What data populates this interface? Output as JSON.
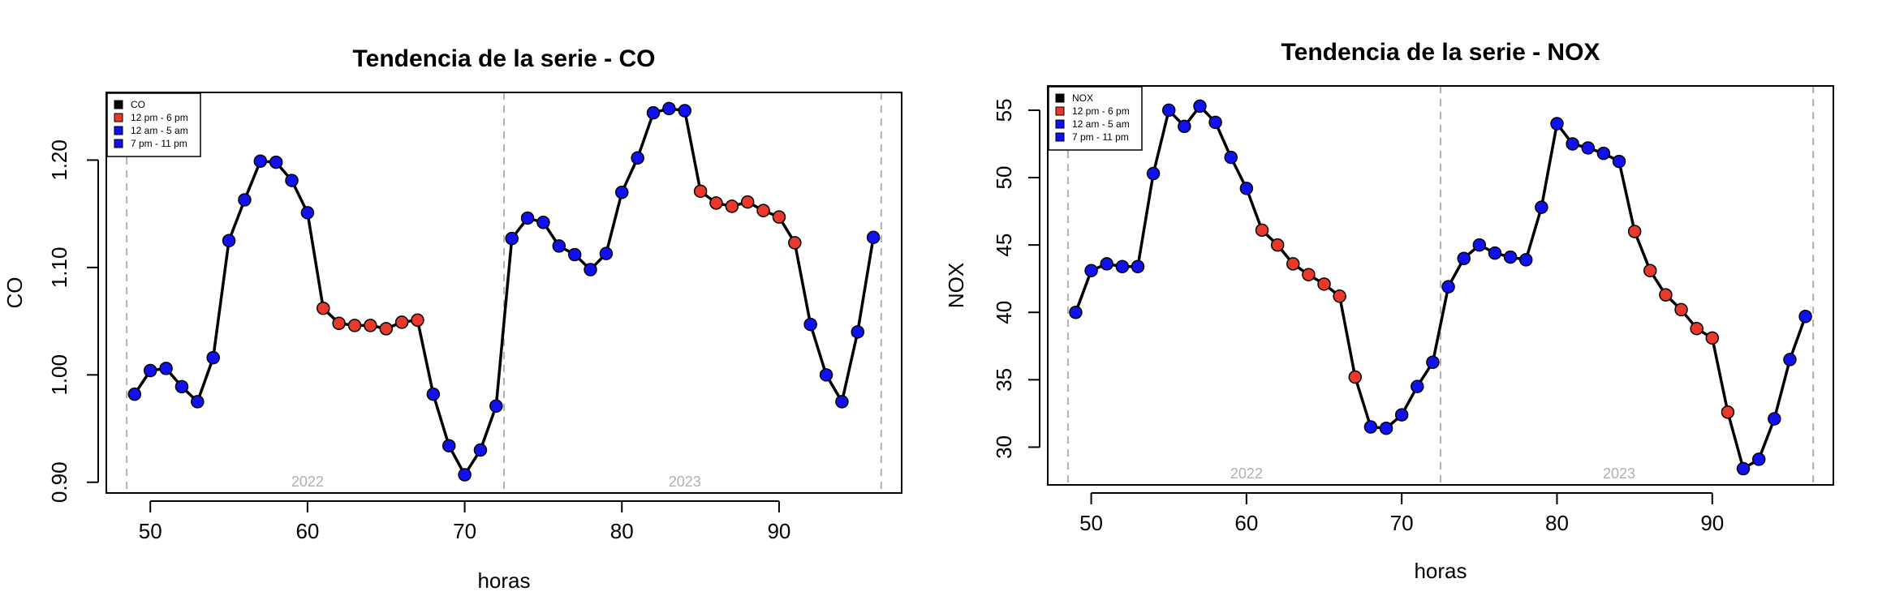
{
  "colors": {
    "line": "#000000",
    "red": "#e8392a",
    "blue": "#1010f0",
    "grid": "#b0b0b0",
    "year_text": "#b0b0b0"
  },
  "chart_data": [
    {
      "type": "line",
      "title": "Tendencia de la serie - CO",
      "xlabel": "horas",
      "ylabel": "CO",
      "xlim": [
        47.2,
        97.8
      ],
      "ylim": [
        0.89,
        1.263
      ],
      "xticks": [
        50,
        60,
        70,
        80,
        90
      ],
      "yticks": [
        0.9,
        1.0,
        1.1,
        1.2
      ],
      "ytick_labels": [
        "0.90",
        "1.00",
        "1.10",
        "1.20"
      ],
      "vlines": [
        48.5,
        72.5,
        96.5
      ],
      "year_labels": [
        {
          "x": 60,
          "text": "2022"
        },
        {
          "x": 84,
          "text": "2023"
        }
      ],
      "legend": {
        "position": "top-left",
        "entries": [
          {
            "label": "CO",
            "color": "#000000"
          },
          {
            "label": "12 pm - 6 pm",
            "color": "#e8392a"
          },
          {
            "label": "12 am - 5 am",
            "color": "#1010f0"
          },
          {
            "label": "7 pm - 11 pm",
            "color": "#1010f0"
          }
        ]
      },
      "series": {
        "x": [
          49,
          50,
          51,
          52,
          53,
          54,
          55,
          56,
          57,
          58,
          59,
          60,
          61,
          62,
          63,
          64,
          65,
          66,
          67,
          68,
          69,
          70,
          71,
          72,
          73,
          74,
          75,
          76,
          77,
          78,
          79,
          80,
          81,
          82,
          83,
          84,
          85,
          86,
          87,
          88,
          89,
          90,
          91,
          92,
          93,
          94,
          95,
          96
        ],
        "values": [
          0.982,
          1.004,
          1.006,
          0.989,
          0.975,
          1.016,
          1.125,
          1.163,
          1.199,
          1.198,
          1.181,
          1.151,
          1.062,
          1.048,
          1.046,
          1.046,
          1.043,
          1.049,
          1.051,
          0.982,
          0.934,
          0.907,
          0.93,
          0.971,
          1.127,
          1.146,
          1.142,
          1.12,
          1.112,
          1.098,
          1.113,
          1.17,
          1.202,
          1.244,
          1.248,
          1.246,
          1.171,
          1.16,
          1.157,
          1.161,
          1.153,
          1.147,
          1.123,
          1.047,
          1.0,
          0.975,
          1.04,
          1.128
        ],
        "groups": [
          "b",
          "b",
          "b",
          "b",
          "b",
          "b",
          "b",
          "b",
          "b",
          "b",
          "b",
          "b",
          "r",
          "r",
          "r",
          "r",
          "r",
          "r",
          "r",
          "b",
          "b",
          "b",
          "b",
          "b",
          "b",
          "b",
          "b",
          "b",
          "b",
          "b",
          "b",
          "b",
          "b",
          "b",
          "b",
          "b",
          "r",
          "r",
          "r",
          "r",
          "r",
          "r",
          "r",
          "b",
          "b",
          "b",
          "b",
          "b"
        ]
      }
    },
    {
      "type": "line",
      "title": "Tendencia de la serie - NOX",
      "xlabel": "horas",
      "ylabel": "NOX",
      "xlim": [
        47.2,
        97.8
      ],
      "ylim": [
        27.2,
        56.8
      ],
      "xticks": [
        50,
        60,
        70,
        80,
        90
      ],
      "yticks": [
        30,
        35,
        40,
        45,
        50,
        55
      ],
      "ytick_labels": [
        "30",
        "35",
        "40",
        "45",
        "50",
        "55"
      ],
      "vlines": [
        48.5,
        72.5,
        96.5
      ],
      "year_labels": [
        {
          "x": 60,
          "text": "2022"
        },
        {
          "x": 84,
          "text": "2023"
        }
      ],
      "legend": {
        "position": "top-left",
        "entries": [
          {
            "label": "NOX",
            "color": "#000000"
          },
          {
            "label": "12 pm - 6 pm",
            "color": "#e8392a"
          },
          {
            "label": "12 am - 5 am",
            "color": "#1010f0"
          },
          {
            "label": "7 pm - 11 pm",
            "color": "#1010f0"
          }
        ]
      },
      "series": {
        "x": [
          49,
          50,
          51,
          52,
          53,
          54,
          55,
          56,
          57,
          58,
          59,
          60,
          61,
          62,
          63,
          64,
          65,
          66,
          67,
          68,
          69,
          70,
          71,
          72,
          73,
          74,
          75,
          76,
          77,
          78,
          79,
          80,
          81,
          82,
          83,
          84,
          85,
          86,
          87,
          88,
          89,
          90,
          91,
          92,
          93,
          94,
          95,
          96
        ],
        "values": [
          40.0,
          43.1,
          43.6,
          43.4,
          43.4,
          50.3,
          55.0,
          53.8,
          55.3,
          54.1,
          51.5,
          49.2,
          46.1,
          45.0,
          43.6,
          42.8,
          42.1,
          41.2,
          35.2,
          31.5,
          31.4,
          32.4,
          34.5,
          36.3,
          41.9,
          44.0,
          45.0,
          44.4,
          44.1,
          43.9,
          47.8,
          54.0,
          52.5,
          52.2,
          51.8,
          51.2,
          46.0,
          43.1,
          41.3,
          40.2,
          38.8,
          38.1,
          32.6,
          28.4,
          29.1,
          32.1,
          36.5,
          39.7
        ],
        "groups": [
          "b",
          "b",
          "b",
          "b",
          "b",
          "b",
          "b",
          "b",
          "b",
          "b",
          "b",
          "b",
          "r",
          "r",
          "r",
          "r",
          "r",
          "r",
          "r",
          "b",
          "b",
          "b",
          "b",
          "b",
          "b",
          "b",
          "b",
          "b",
          "b",
          "b",
          "b",
          "b",
          "b",
          "b",
          "b",
          "b",
          "r",
          "r",
          "r",
          "r",
          "r",
          "r",
          "r",
          "b",
          "b",
          "b",
          "b",
          "b"
        ]
      }
    }
  ]
}
